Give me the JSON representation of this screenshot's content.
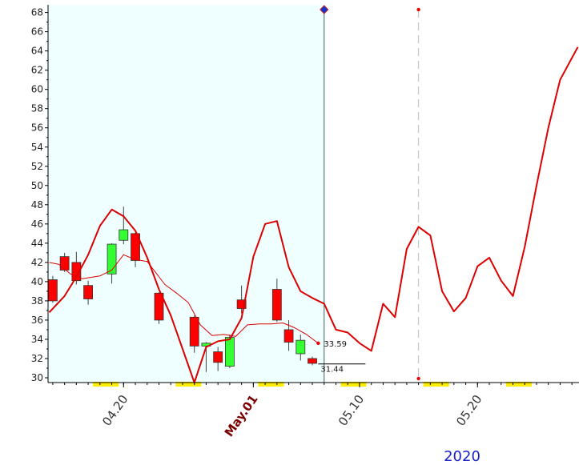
{
  "chart_data": {
    "type": "candlestick",
    "year_label": "2020",
    "colors": {
      "up": "#33ff33",
      "down": "#ff0000",
      "line": "#dd0000",
      "shade": "#effefe",
      "axis": "#000000",
      "divider": "#336666",
      "forecast_marker": "#ee0000",
      "weekend_marker": "#ffee00",
      "forecast_diamond": "#1133cc"
    },
    "ylim": [
      29.5,
      68.8
    ],
    "y_ticks": [
      30,
      32,
      34,
      36,
      38,
      40,
      42,
      44,
      46,
      48,
      50,
      52,
      54,
      56,
      58,
      60,
      62,
      64,
      66,
      68
    ],
    "y_tick_labels": [
      "30",
      "32",
      "34",
      "36",
      "38",
      "40",
      "42",
      "44",
      "46",
      "48",
      "50",
      "52",
      "54",
      "56",
      "58",
      "60",
      "62",
      "64",
      "66",
      "68"
    ],
    "xlim": [
      -0.4,
      44.6
    ],
    "x_ticks": [
      {
        "x": 6.0,
        "label": "04.20",
        "major": false
      },
      {
        "x": 17.0,
        "label": "May.01",
        "major": true
      },
      {
        "x": 26.0,
        "label": "05.10",
        "major": false
      },
      {
        "x": 36.0,
        "label": "05.20",
        "major": false
      }
    ],
    "weekend_x": [
      4.5,
      11.5,
      18.5,
      25.5,
      32.5,
      39.5
    ],
    "last_candle_x": 23.0,
    "forecast_marker_x": 31.0,
    "forecast_top": 68.3,
    "candles": [
      {
        "x": 0,
        "open": 40.2,
        "high": 40.6,
        "low": 37.8,
        "close": 38.0
      },
      {
        "x": 1,
        "open": 42.6,
        "high": 43.0,
        "low": 41.0,
        "close": 41.2
      },
      {
        "x": 2,
        "open": 42.0,
        "high": 43.1,
        "low": 39.7,
        "close": 40.1
      },
      {
        "x": 3,
        "open": 39.6,
        "high": 40.1,
        "low": 37.6,
        "close": 38.2
      },
      {
        "x": 5,
        "open": 40.8,
        "high": 44.0,
        "low": 39.8,
        "close": 43.9
      },
      {
        "x": 6,
        "open": 44.3,
        "high": 47.8,
        "low": 43.9,
        "close": 45.4
      },
      {
        "x": 7,
        "open": 45.0,
        "high": 45.1,
        "low": 41.5,
        "close": 42.2
      },
      {
        "x": 9,
        "open": 38.8,
        "high": 38.9,
        "low": 35.6,
        "close": 36.0
      },
      {
        "x": 12,
        "open": 36.3,
        "high": 36.5,
        "low": 32.6,
        "close": 33.3
      },
      {
        "x": 13,
        "open": 33.3,
        "high": 33.7,
        "low": 30.6,
        "close": 33.6
      },
      {
        "x": 14,
        "open": 32.7,
        "high": 33.2,
        "low": 30.7,
        "close": 31.6
      },
      {
        "x": 15,
        "open": 31.2,
        "high": 34.5,
        "low": 31.0,
        "close": 34.2
      },
      {
        "x": 16,
        "open": 38.1,
        "high": 39.6,
        "low": 36.7,
        "close": 37.2
      },
      {
        "x": 19,
        "open": 39.2,
        "high": 40.3,
        "low": 35.8,
        "close": 36.0
      },
      {
        "x": 20,
        "open": 35.0,
        "high": 36.0,
        "low": 32.8,
        "close": 33.7
      },
      {
        "x": 21,
        "open": 32.5,
        "high": 34.5,
        "low": 31.8,
        "close": 33.9
      },
      {
        "x": 22,
        "open": 32.0,
        "high": 32.2,
        "low": 31.3,
        "close": 31.5
      }
    ],
    "series": [
      {
        "x": [
          -0.3,
          0.5,
          1.5,
          2.5,
          4.0,
          5.0,
          6.0,
          7.0,
          8.0,
          9.5,
          10.5,
          11.5,
          12.5,
          13.5,
          14.5,
          15.5,
          16.5,
          17.5,
          18.5,
          19.5,
          20.5,
          21.5,
          22.5
        ],
        "y": [
          42.0,
          41.8,
          40.8,
          40.3,
          40.6,
          41.2,
          42.8,
          42.3,
          42.1,
          39.7,
          38.8,
          37.8,
          35.5,
          34.4,
          34.5,
          34.3,
          35.5,
          35.6,
          35.6,
          35.7,
          35.2,
          34.5,
          33.59
        ],
        "endpoint_label": "33.59"
      },
      {
        "x": [
          -0.3,
          1.0,
          2.0,
          3.0,
          4.0,
          5.0,
          6.0,
          7.0,
          8.0,
          9.0,
          10.0,
          11.0,
          12.0,
          13.0,
          14.0,
          15.0,
          16.0,
          17.0,
          18.0,
          19.0,
          20.0,
          21.0,
          22.0,
          23.0,
          24.0,
          25.0,
          26.0,
          27.0,
          28.0,
          29.0,
          30.0,
          31.0,
          32.0,
          33.0,
          34.0,
          35.0,
          36.0,
          37.0,
          38.0,
          39.0,
          40.0,
          41.0,
          42.0,
          43.0,
          44.5
        ],
        "y": [
          36.8,
          38.5,
          40.5,
          42.8,
          45.8,
          47.5,
          46.8,
          45.3,
          42.5,
          39.2,
          36.5,
          33.0,
          29.5,
          33.2,
          33.8,
          34.0,
          36.2,
          42.6,
          46.0,
          46.3,
          41.5,
          39.0,
          38.3,
          37.7,
          35.0,
          34.7,
          33.6,
          32.8,
          37.7,
          36.3,
          43.4,
          45.7,
          44.8,
          39.0,
          36.9,
          38.3,
          41.6,
          42.5,
          40.1,
          38.5,
          43.6,
          50.0,
          56.0,
          61.0,
          64.4
        ]
      }
    ],
    "level_line": {
      "x0": 22.5,
      "x1": 26.5,
      "y": 31.44,
      "label": "31.44"
    }
  }
}
